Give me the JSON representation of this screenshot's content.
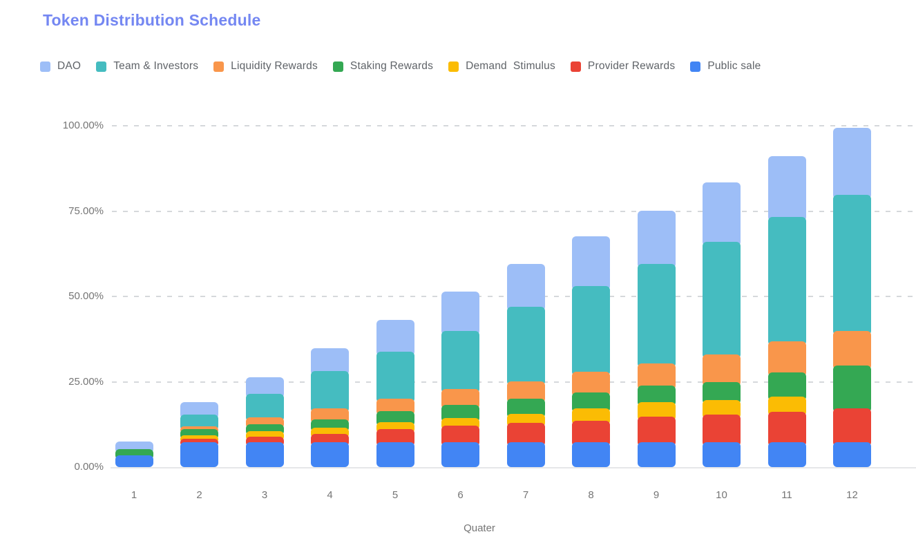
{
  "title": {
    "text": "Token Distribution Schedule",
    "color": "#7487F2"
  },
  "chart_data": {
    "type": "bar",
    "stacked": true,
    "cumulative": true,
    "title": "Token Distribution Schedule",
    "xlabel": "Quater",
    "ylabel": "",
    "categories": [
      "1",
      "2",
      "3",
      "4",
      "5",
      "6",
      "7",
      "8",
      "9",
      "10",
      "11",
      "12"
    ],
    "ylim": [
      0,
      100
    ],
    "grid": "horizontal-dashed",
    "legend_position": "top",
    "y_axis": [
      {
        "label": "100.00%",
        "value": 100
      },
      {
        "label": "75.00%",
        "value": 75
      },
      {
        "label": "50.00%",
        "value": 50
      },
      {
        "label": "25.00%",
        "value": 25
      },
      {
        "label": "0.00%",
        "value": 0
      }
    ],
    "series": [
      {
        "name": "Public sale",
        "color": "#4285F4",
        "values": [
          3.5,
          7.2,
          7.2,
          7.2,
          7.2,
          7.2,
          7.2,
          7.2,
          7.2,
          7.2,
          7.2,
          7.2
        ]
      },
      {
        "name": "Provider Rewards",
        "color": "#EA4335",
        "values": [
          0,
          1.0,
          1.7,
          2.5,
          3.9,
          5.0,
          5.7,
          6.4,
          7.6,
          8.1,
          9.0,
          10.0
        ]
      },
      {
        "name": "Demand  Stimulus",
        "color": "#FBBC04",
        "values": [
          0,
          1.1,
          1.6,
          1.8,
          2.0,
          2.2,
          2.7,
          3.6,
          4.2,
          4.4,
          4.4,
          0
        ]
      },
      {
        "name": "Staking Rewards",
        "color": "#34A853",
        "values": [
          1.7,
          1.8,
          2.1,
          2.5,
          3.2,
          3.9,
          4.4,
          4.7,
          4.8,
          5.1,
          7.1,
          12.5
        ]
      },
      {
        "name": "Liquidity Rewards",
        "color": "#F9964B",
        "values": [
          0,
          0.9,
          1.9,
          3.2,
          3.8,
          4.6,
          5.2,
          6.1,
          6.5,
          8.2,
          9.1,
          10.1
        ]
      },
      {
        "name": "Team & Investors",
        "color": "#45BCC0",
        "values": [
          0,
          3.3,
          7.0,
          11.0,
          13.7,
          17.0,
          21.8,
          25.0,
          29.2,
          33.0,
          36.4,
          39.9
        ]
      },
      {
        "name": "DAO",
        "color": "#9DBEF7",
        "values": [
          2.2,
          3.7,
          4.9,
          6.6,
          9.4,
          11.6,
          12.6,
          14.7,
          15.7,
          17.5,
          17.9,
          19.6
        ]
      }
    ],
    "totals": [
      7.4,
      19.0,
      26.4,
      34.8,
      43.2,
      51.5,
      59.6,
      67.7,
      75.2,
      83.5,
      91.1,
      99.3
    ]
  }
}
